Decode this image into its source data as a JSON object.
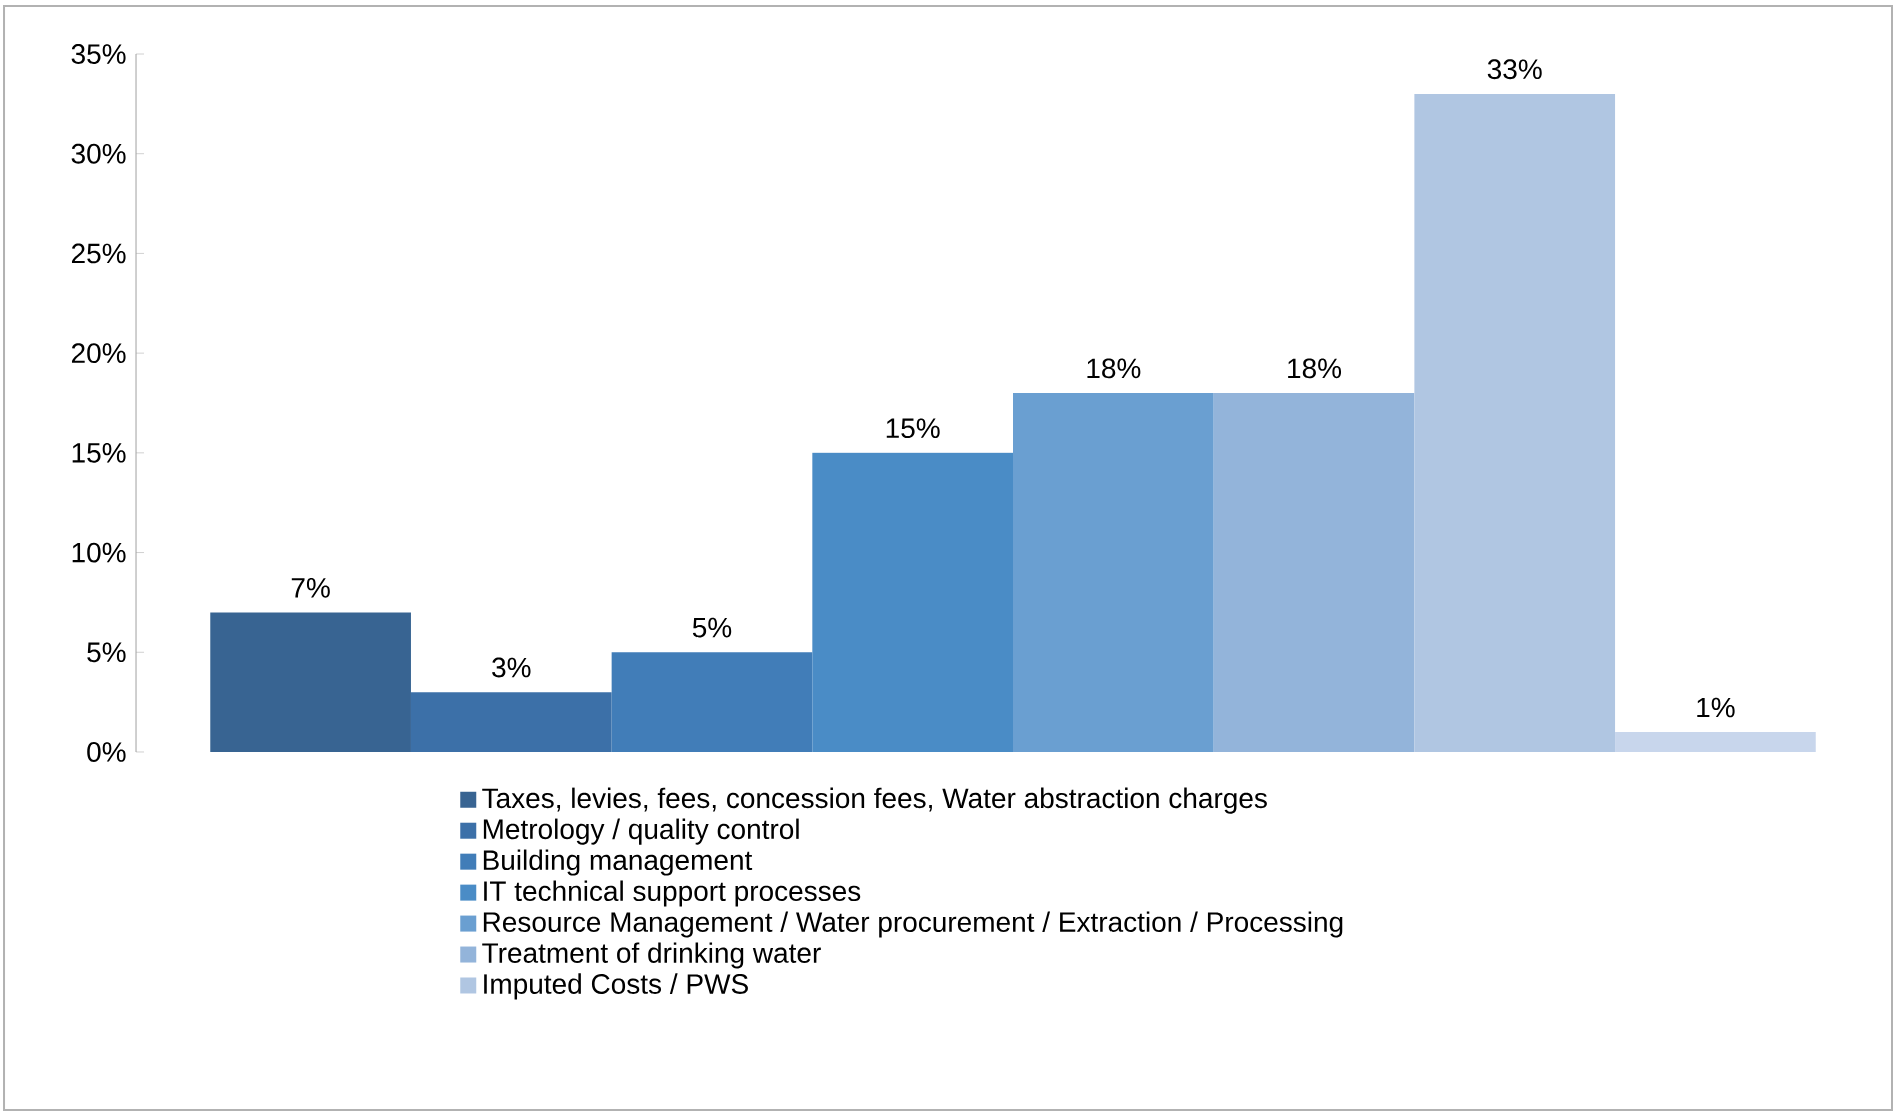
{
  "chart_data": {
    "type": "bar",
    "categories": [
      null
    ],
    "series": [
      {
        "name": "Taxes, levies, fees, concession fees, Water abstraction charges",
        "color": "#386492",
        "values": [
          7
        ],
        "value_labels": [
          "7%"
        ]
      },
      {
        "name": "Metrology / quality control",
        "color": "#3c70a8",
        "values": [
          3
        ],
        "value_labels": [
          "3%"
        ]
      },
      {
        "name": "Building management",
        "color": "#417db8",
        "values": [
          5
        ],
        "value_labels": [
          "5%"
        ]
      },
      {
        "name": "IT technical support processes",
        "color": "#4a8cc6",
        "values": [
          15
        ],
        "value_labels": [
          "15%"
        ]
      },
      {
        "name": "Resource Management / Water procurement / Extraction / Processing",
        "color": "#6a9fd1",
        "values": [
          18
        ],
        "value_labels": [
          "18%"
        ]
      },
      {
        "name": "Treatment of drinking water",
        "color": "#93b4da",
        "values": [
          18
        ],
        "value_labels": [
          "18%"
        ]
      },
      {
        "name": "Imputed Costs / PWS",
        "color": "#b0c6e2",
        "values": [
          33
        ],
        "value_labels": [
          "33%"
        ]
      },
      {
        "color": "#c8d6ec",
        "values": [
          1
        ],
        "value_labels": [
          "1%"
        ]
      }
    ],
    "ylim": [
      0,
      35
    ],
    "yticks": [
      {
        "value": 0,
        "label": "0%"
      },
      {
        "value": 5,
        "label": "5%"
      },
      {
        "value": 10,
        "label": "10%"
      },
      {
        "value": 15,
        "label": "15%"
      },
      {
        "value": 20,
        "label": "20%"
      },
      {
        "value": 25,
        "label": "25%"
      },
      {
        "value": 30,
        "label": "30%"
      },
      {
        "value": 35,
        "label": "35%"
      }
    ],
    "legend": "bottom"
  }
}
